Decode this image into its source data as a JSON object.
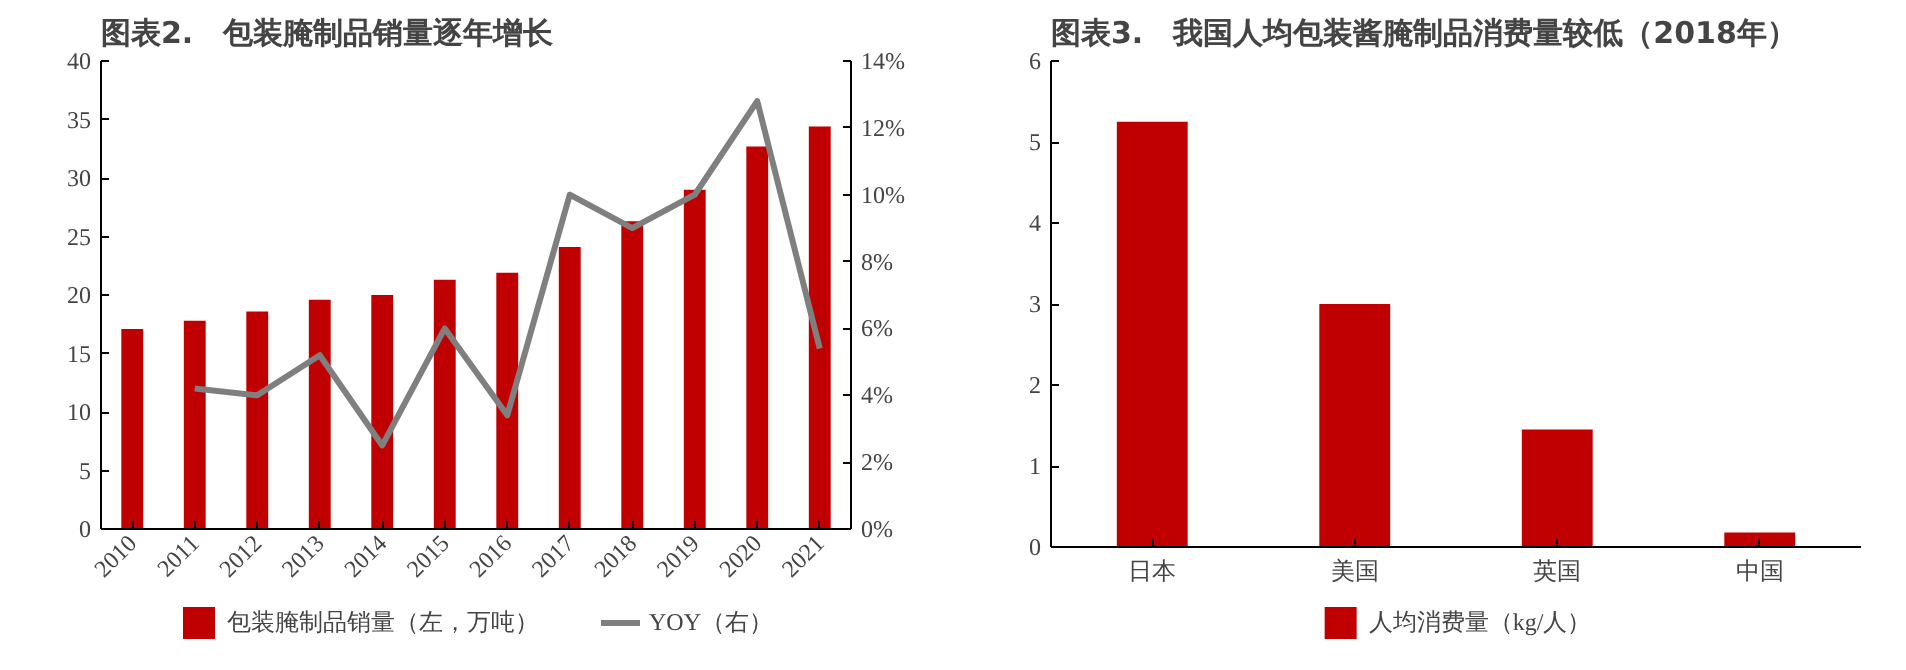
{
  "chart_data": [
    {
      "type": "bar",
      "title": "图表2.　包装腌制品销量逐年增长",
      "categories": [
        "2010",
        "2011",
        "2012",
        "2013",
        "2014",
        "2015",
        "2016",
        "2017",
        "2018",
        "2019",
        "2020",
        "2021"
      ],
      "series": [
        {
          "name": "包装腌制品销量（左，万吨）",
          "type": "bar",
          "color": "#c00000",
          "values": [
            17.1,
            17.8,
            18.6,
            19.6,
            20.0,
            21.3,
            21.9,
            24.1,
            26.3,
            29.0,
            32.7,
            34.4
          ]
        },
        {
          "name": "YOY（右）",
          "type": "line",
          "axis": "y2",
          "color": "#7f7f7f",
          "values": [
            null,
            4.2,
            4.0,
            5.2,
            2.5,
            6.0,
            3.4,
            10.0,
            9.0,
            10.0,
            12.8,
            5.4
          ]
        }
      ],
      "ylim": [
        0,
        40
      ],
      "yticks": [
        0,
        5,
        10,
        15,
        20,
        25,
        30,
        35,
        40
      ],
      "y2lim": [
        0,
        14
      ],
      "y2ticks": [
        {
          "value": 0,
          "label": "0%"
        },
        {
          "value": 2,
          "label": "2%"
        },
        {
          "value": 4,
          "label": "4%"
        },
        {
          "value": 6,
          "label": "6%"
        },
        {
          "value": 8,
          "label": "8%"
        },
        {
          "value": 10,
          "label": "10%"
        },
        {
          "value": 12,
          "label": "12%"
        },
        {
          "value": 14,
          "label": "14%"
        }
      ],
      "grid": false,
      "legend": "bottom"
    },
    {
      "type": "bar",
      "title": "图表3.　我国人均包装酱腌制品消费量较低（2018年）",
      "categories": [
        "日本",
        "美国",
        "英国",
        "中国"
      ],
      "series": [
        {
          "name": "人均消费量（kg/人）",
          "color": "#c00000",
          "values": [
            5.25,
            3.0,
            1.45,
            0.18
          ]
        }
      ],
      "ylim": [
        0,
        6
      ],
      "yticks": [
        0,
        1,
        2,
        3,
        4,
        5,
        6
      ],
      "grid": false,
      "legend": "bottom"
    }
  ]
}
